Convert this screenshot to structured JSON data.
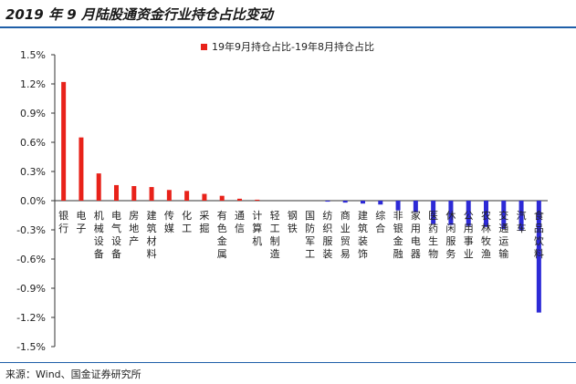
{
  "title": "2019 年 9 月陆股通资金行业持仓占比变动",
  "source": "来源：Wind、国金证券研究所",
  "colors": {
    "positive": "#e8221a",
    "negative": "#2d2ad6",
    "rule": "#1f5fa8"
  },
  "chart_data": {
    "type": "bar",
    "legend": "19年9月持仓占比-19年8月持仓占比",
    "legend_position": "top",
    "grid": false,
    "ylim": [
      -1.5,
      1.5
    ],
    "yticks": [
      "1.5%",
      "1.2%",
      "0.9%",
      "0.6%",
      "0.3%",
      "0.0%",
      "-0.3%",
      "-0.6%",
      "-0.9%",
      "-1.2%",
      "-1.5%"
    ],
    "ytick_values": [
      1.5,
      1.2,
      0.9,
      0.6,
      0.3,
      0.0,
      -0.3,
      -0.6,
      -0.9,
      -1.2,
      -1.5
    ],
    "categories": [
      "银行",
      "电子",
      "机械设备",
      "电气设备",
      "房地产",
      "建筑材料",
      "传媒",
      "化工",
      "采掘",
      "有色金属",
      "通信",
      "计算机",
      "轻工制造",
      "钢铁",
      "国防军工",
      "纺织服装",
      "商业贸易",
      "建筑装饰",
      "综合",
      "非银金融",
      "家用电器",
      "医药生物",
      "休闲服务",
      "公用事业",
      "农林牧渔",
      "交通运输",
      "汽车",
      "食品饮料"
    ],
    "values": [
      1.22,
      0.65,
      0.28,
      0.16,
      0.15,
      0.14,
      0.11,
      0.1,
      0.07,
      0.05,
      0.02,
      0.01,
      0.0,
      0.0,
      0.0,
      -0.01,
      -0.02,
      -0.03,
      -0.04,
      -0.1,
      -0.12,
      -0.24,
      -0.25,
      -0.26,
      -0.27,
      -0.29,
      -0.31,
      -1.15
    ]
  }
}
